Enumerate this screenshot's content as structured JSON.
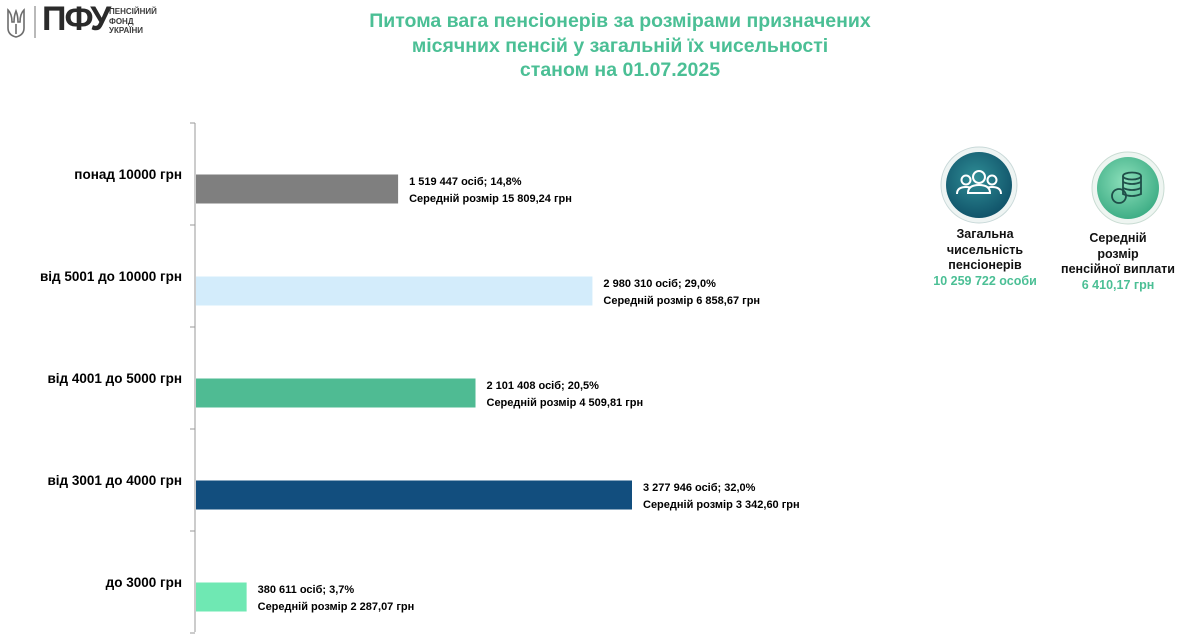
{
  "logo": {
    "mark": "ПФУ",
    "sub_line1": "ПЕНСІЙНИЙ",
    "sub_line2": "ФОНД",
    "sub_line3": "УКРАЇНИ"
  },
  "chart_data": {
    "type": "bar",
    "orientation": "horizontal",
    "title": [
      "Питома вага пенсіонерів за розмірами призначених",
      "місячних пенсій у загальній їх чисельності",
      "станом на 01.07.2025"
    ],
    "xlabel": "",
    "ylabel": "",
    "grid": false,
    "legend": "none",
    "categories": [
      "понад 10000 грн",
      "від 5001 до 10000 грн",
      "від 4001 до 5000 грн",
      "від 3001 до 4000 грн",
      "до 3000 грн"
    ],
    "values": [
      1519447,
      2980310,
      2101408,
      3277946,
      380611
    ],
    "shares_percent": [
      14.8,
      29.0,
      20.5,
      32.0,
      3.7
    ],
    "average_size": [
      15809.24,
      6858.67,
      4509.81,
      3342.6,
      2287.07
    ],
    "data_labels_line1": [
      "1 519 447 осіб;  14,8%",
      "2 980 310 осіб; 29,0%",
      "2 101 408 осіб; 20,5%",
      "3 277 946 осіб; 32,0%",
      "380 611 осіб; 3,7%"
    ],
    "data_labels_line2": [
      "Середній розмір 15 809,24 грн",
      "Середній розмір 6 858,67 грн",
      "Середній розмір 4 509,81 грн",
      "Середній розмір 3 342,60 грн",
      "Середній розмір 2 287,07 грн"
    ],
    "colors": [
      "#7f7f7f",
      "#d3ecfb",
      "#4fbb93",
      "#124e7e",
      "#6fe8b3"
    ]
  },
  "summary": {
    "total_label_line1": "Загальна",
    "total_label_line2": "чисельність",
    "total_label_line3": "пенсіонерів",
    "total_value": "10 259 722 особи",
    "average_label_line1": "Середній",
    "average_label_line2": "розмір",
    "average_label_line3": "пенсійної виплати",
    "average_value": "6 410,17 грн",
    "icons": [
      "people-group-icon",
      "coins-stack-icon"
    ],
    "colors": {
      "accent": "#4bbf95",
      "circle_dark": "#1a6c7a"
    }
  }
}
